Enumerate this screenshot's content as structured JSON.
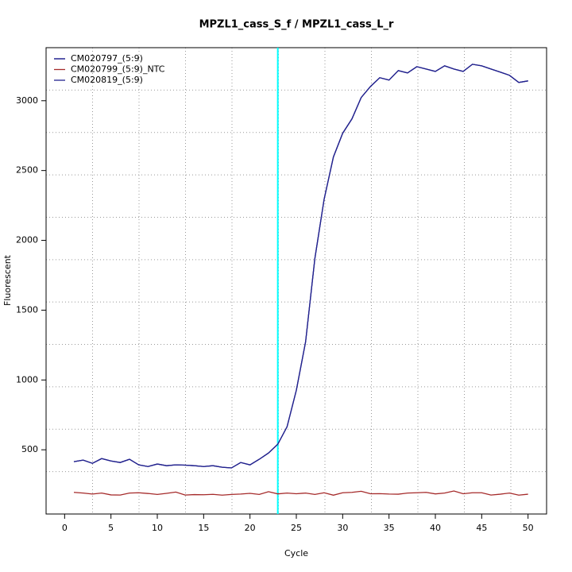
{
  "chart_data": {
    "type": "line",
    "title": "MPZL1_cass_S_f / MPZL1_cass_L_r",
    "x_label": "Cycle",
    "y_label": "Fluorescent",
    "x": [
      1,
      2,
      3,
      4,
      5,
      6,
      7,
      8,
      9,
      10,
      11,
      12,
      13,
      14,
      15,
      16,
      17,
      18,
      19,
      20,
      21,
      22,
      23,
      24,
      25,
      26,
      27,
      28,
      29,
      30,
      31,
      32,
      33,
      34,
      35,
      36,
      37,
      38,
      39,
      40,
      41,
      42,
      43,
      44,
      45,
      46,
      47,
      48,
      49,
      50
    ],
    "series": [
      {
        "name": "CM020797_(5:9)",
        "color": "#000080",
        "values": [
          415,
          426,
          403,
          437,
          420,
          409,
          432,
          392,
          380,
          398,
          386,
          392,
          390,
          386,
          380,
          386,
          375,
          370,
          409,
          392,
          432,
          477,
          540,
          665,
          926,
          1273,
          1870,
          2295,
          2597,
          2767,
          2870,
          3023,
          3102,
          3165,
          3148,
          3216,
          3199,
          3244,
          3227,
          3210,
          3250,
          3227,
          3210,
          3261,
          3250,
          3227,
          3205,
          3182,
          3131,
          3142
        ]
      },
      {
        "name": "CM020799_(5:9)_NTC",
        "color": "#a52a2a",
        "values": [
          195,
          190,
          183,
          190,
          177,
          176,
          190,
          192,
          187,
          180,
          188,
          197,
          176,
          179,
          178,
          181,
          175,
          180,
          183,
          188,
          180,
          200,
          184,
          190,
          185,
          190,
          180,
          192,
          175,
          192,
          195,
          203,
          185,
          186,
          183,
          182,
          190,
          192,
          195,
          184,
          190,
          205,
          185,
          192,
          192,
          176,
          182,
          190,
          175,
          182
        ]
      },
      {
        "name": "CM020819_(5:9)",
        "color": "#23238e",
        "values": [
          415,
          426,
          403,
          437,
          420,
          409,
          432,
          392,
          380,
          398,
          386,
          392,
          390,
          386,
          380,
          386,
          375,
          370,
          409,
          392,
          432,
          477,
          540,
          665,
          926,
          1273,
          1870,
          2295,
          2597,
          2767,
          2870,
          3023,
          3102,
          3165,
          3148,
          3216,
          3199,
          3244,
          3227,
          3210,
          3250,
          3227,
          3210,
          3261,
          3250,
          3227,
          3205,
          3182,
          3131,
          3142
        ]
      }
    ],
    "xlim": [
      -2,
      52
    ],
    "ylim": [
      40,
      3380
    ],
    "xticks": [
      0,
      5,
      10,
      15,
      20,
      25,
      30,
      35,
      40,
      45,
      50
    ],
    "yticks": [
      500,
      1000,
      1500,
      2000,
      2500,
      3000
    ],
    "grid": true,
    "legend": "top-left",
    "vline": 23,
    "vline_color": "#00ffff"
  }
}
